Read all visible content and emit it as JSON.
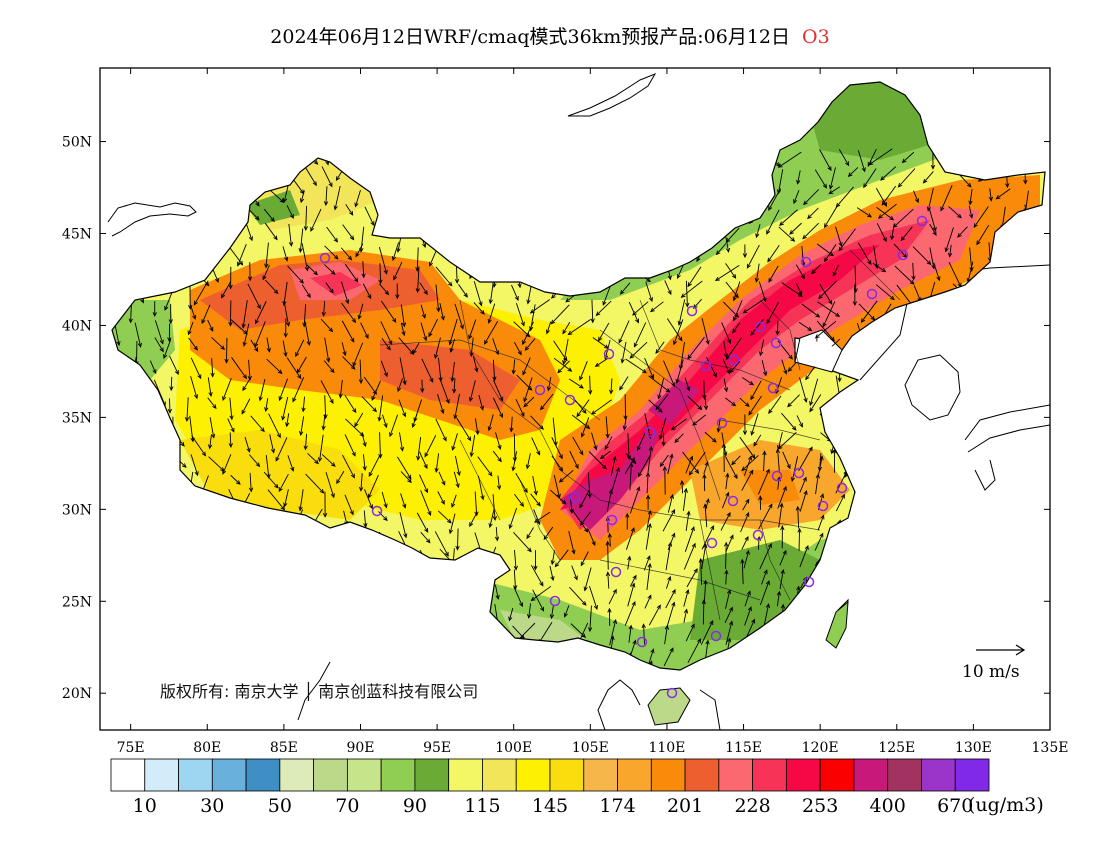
{
  "title": {
    "text": "2024年06月12日WRF/cmaq模式36km预报产品:06月12日",
    "variable": "O3"
  },
  "map": {
    "lat_labels": [
      "50N",
      "45N",
      "40N",
      "35N",
      "30N",
      "25N",
      "20N"
    ],
    "lat_values": [
      50,
      45,
      40,
      35,
      30,
      25,
      20
    ],
    "lon_labels": [
      "75E",
      "80E",
      "85E",
      "90E",
      "95E",
      "100E",
      "105E",
      "110E",
      "115E",
      "120E",
      "125E",
      "130E",
      "135E"
    ],
    "lon_values": [
      75,
      80,
      85,
      90,
      95,
      100,
      105,
      110,
      115,
      120,
      125,
      130,
      135
    ],
    "lon_range": [
      73,
      135
    ],
    "lat_range": [
      18,
      54
    ],
    "copyright": "版权所有: 南京大学 │ 南京创蓝科技有限公司",
    "wind_reference": "10 m/s",
    "station_color": "#8a2be2"
  },
  "colorbar": {
    "colors": [
      "#ffffff",
      "#d2ecf9",
      "#9ed6f2",
      "#6ab0dd",
      "#3f8ec4",
      "#dcebb8",
      "#bcd98a",
      "#c6e48a",
      "#8fce52",
      "#6aab36",
      "#f3f765",
      "#f2e55a",
      "#fdf000",
      "#f9dd0c",
      "#f7b64a",
      "#f9a72c",
      "#f98a0a",
      "#ed5f2e",
      "#fc6870",
      "#f73357",
      "#f60746",
      "#fa0000",
      "#c8197b",
      "#a23260",
      "#9b35c9",
      "#8129e8"
    ],
    "labels": [
      "10",
      "30",
      "50",
      "70",
      "90",
      "115",
      "145",
      "174",
      "201",
      "228",
      "253",
      "400",
      "670"
    ],
    "unit": "(ug/m3)"
  }
}
